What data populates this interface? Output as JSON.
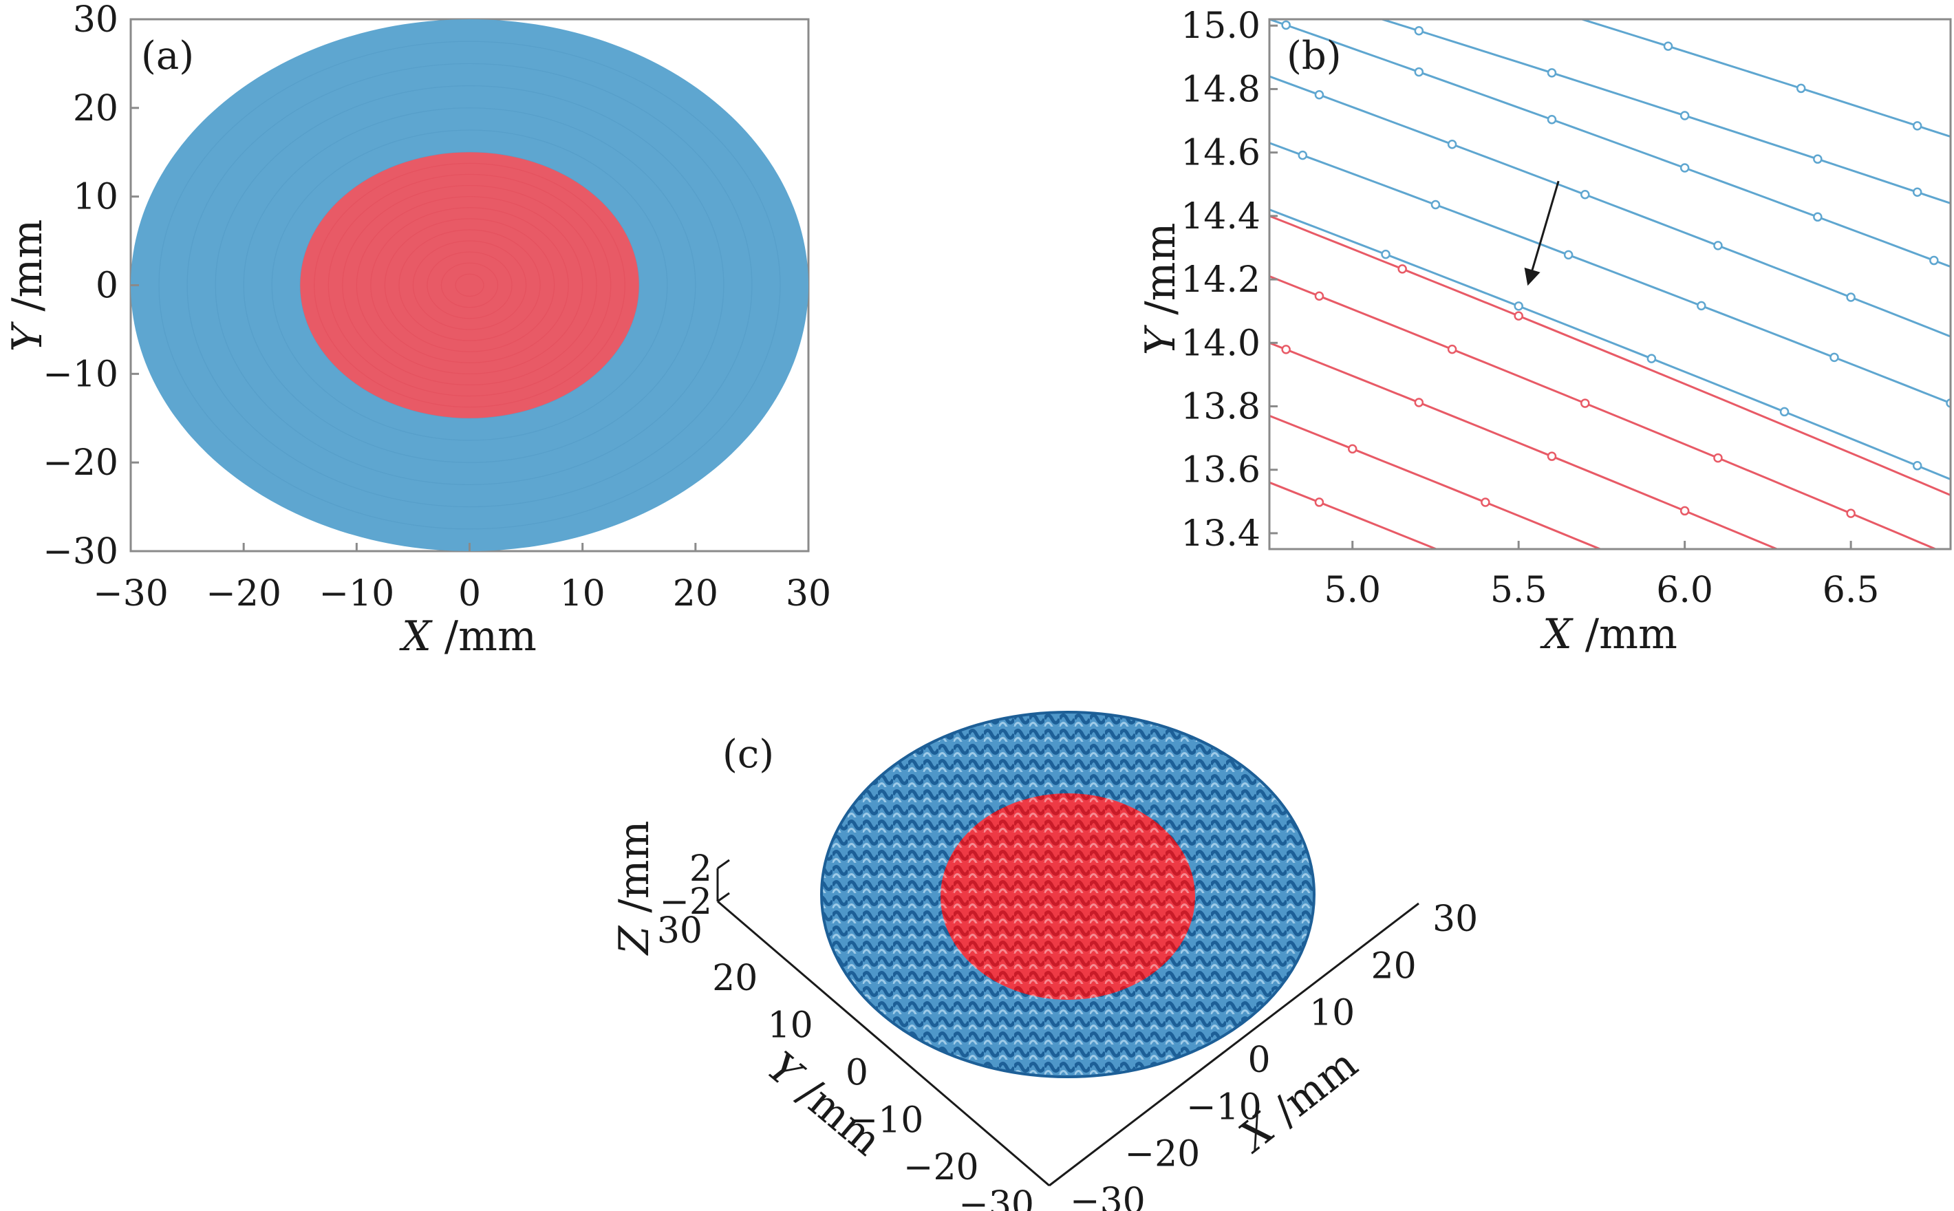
{
  "colors": {
    "outer": "#5ea6d0",
    "outer_dark": "#2a6fa5",
    "inner": "#e85a66",
    "inner_dark": "#e02a34"
  },
  "chart_data": [
    {
      "panel": "(a)",
      "type": "scatter",
      "xlabel_var": "X",
      "xlabel_unit": " /mm",
      "ylabel_var": "Y",
      "ylabel_unit": " /mm",
      "xlim": [
        -30,
        30
      ],
      "ylim": [
        -30,
        30
      ],
      "xticks": [
        -30,
        -20,
        -10,
        0,
        10,
        20,
        30
      ],
      "yticks": [
        30,
        20,
        10,
        0,
        -10,
        -20,
        -30
      ],
      "xtick_labels": [
        "−30",
        "−20",
        "−10",
        "0",
        "10",
        "20",
        "30"
      ],
      "ytick_labels": [
        "30",
        "20",
        "10",
        "0",
        "−10",
        "−20",
        "−30"
      ],
      "regions": [
        {
          "shape": "disk",
          "radius": 30,
          "color": "#5ea6d0"
        },
        {
          "shape": "disk",
          "radius": 15,
          "color": "#e85a66"
        }
      ]
    },
    {
      "panel": "(b)",
      "type": "line",
      "xlabel_var": "X",
      "xlabel_unit": " /mm",
      "ylabel_var": "Y",
      "ylabel_unit": " /mm",
      "xlim": [
        4.75,
        6.8
      ],
      "ylim": [
        13.35,
        15.02
      ],
      "xticks": [
        5.0,
        5.5,
        6.0,
        6.5
      ],
      "xtick_labels": [
        "5.0",
        "5.5",
        "6.0",
        "6.5"
      ],
      "yticks": [
        15.0,
        14.8,
        14.6,
        14.4,
        14.2,
        14.0,
        13.8,
        13.6,
        13.4
      ],
      "ytick_labels": [
        "15.0",
        "14.8",
        "14.6",
        "14.4",
        "14.2",
        "14.0",
        "13.8",
        "13.6",
        "13.4"
      ],
      "series": [
        {
          "color": "#5ea6d0",
          "x": [
            4.75,
            6.8
          ],
          "y": [
            15.32,
            14.68
          ],
          "markers_x": [
            5.55,
            5.95,
            6.35,
            6.7
          ]
        },
        {
          "color": "#5ea6d0",
          "x": [
            4.75,
            6.8
          ],
          "y": [
            15.13,
            14.47
          ],
          "markers_x": [
            5.2,
            5.6,
            6.0,
            6.4,
            6.7
          ]
        },
        {
          "color": "#5ea6d0",
          "x": [
            4.75,
            6.8
          ],
          "y": [
            15.02,
            14.27
          ],
          "markers_x": [
            4.8,
            5.2,
            5.6,
            6.0,
            6.4,
            6.75
          ]
        },
        {
          "color": "#5ea6d0",
          "x": [
            4.75,
            6.8
          ],
          "y": [
            14.84,
            14.05
          ],
          "markers_x": [
            4.9,
            5.3,
            5.7,
            6.1,
            6.5
          ]
        },
        {
          "color": "#5ea6d0",
          "x": [
            4.75,
            6.8
          ],
          "y": [
            14.63,
            13.84
          ],
          "markers_x": [
            4.85,
            5.25,
            5.65,
            6.05,
            6.45,
            6.8
          ]
        },
        {
          "color": "#5ea6d0",
          "x": [
            4.75,
            6.8
          ],
          "y": [
            14.42,
            13.6
          ],
          "markers_x": [
            5.1,
            5.5,
            5.9,
            6.3,
            6.7
          ]
        },
        {
          "color": "#e85a66",
          "x": [
            4.75,
            6.8
          ],
          "y": [
            14.4,
            13.55
          ],
          "markers_x": [
            5.15,
            5.5
          ]
        },
        {
          "color": "#e85a66",
          "x": [
            4.75,
            6.8
          ],
          "y": [
            14.21,
            13.36
          ],
          "markers_x": [
            4.9,
            5.3,
            5.7,
            6.1,
            6.5
          ]
        },
        {
          "color": "#e85a66",
          "x": [
            4.75,
            6.8
          ],
          "y": [
            14.0,
            13.15
          ],
          "markers_x": [
            4.8,
            5.2,
            5.6,
            6.0
          ]
        },
        {
          "color": "#e85a66",
          "x": [
            4.75,
            6.8
          ],
          "y": [
            13.77,
            12.92
          ],
          "markers_x": [
            5.0,
            5.4,
            5.8
          ]
        },
        {
          "color": "#e85a66",
          "x": [
            4.75,
            6.8
          ],
          "y": [
            13.56,
            12.71
          ],
          "markers_x": [
            4.9,
            5.3,
            5.7
          ]
        }
      ],
      "arrow": {
        "from": [
          5.62,
          14.51
        ],
        "to": [
          5.53,
          14.19
        ]
      }
    },
    {
      "panel": "(c)",
      "type": "surface",
      "xlabel_var": "X",
      "xlabel_unit": " /mm",
      "ylabel_var": "Y",
      "ylabel_unit": " /mm",
      "zlabel_var": "Z",
      "zlabel_unit": " /mm",
      "xlim": [
        -30,
        30
      ],
      "ylim": [
        -30,
        30
      ],
      "zlim": [
        -2,
        2
      ],
      "xtick_labels": [
        "−30",
        "−20",
        "−10",
        "0",
        "10",
        "20",
        "30"
      ],
      "ytick_labels": [
        "−30",
        "−20",
        "−10",
        "0",
        "10",
        "20",
        "30"
      ],
      "ztick_labels": [
        "2",
        "−2"
      ],
      "outer_radius": 30,
      "inner_radius": 15
    }
  ]
}
